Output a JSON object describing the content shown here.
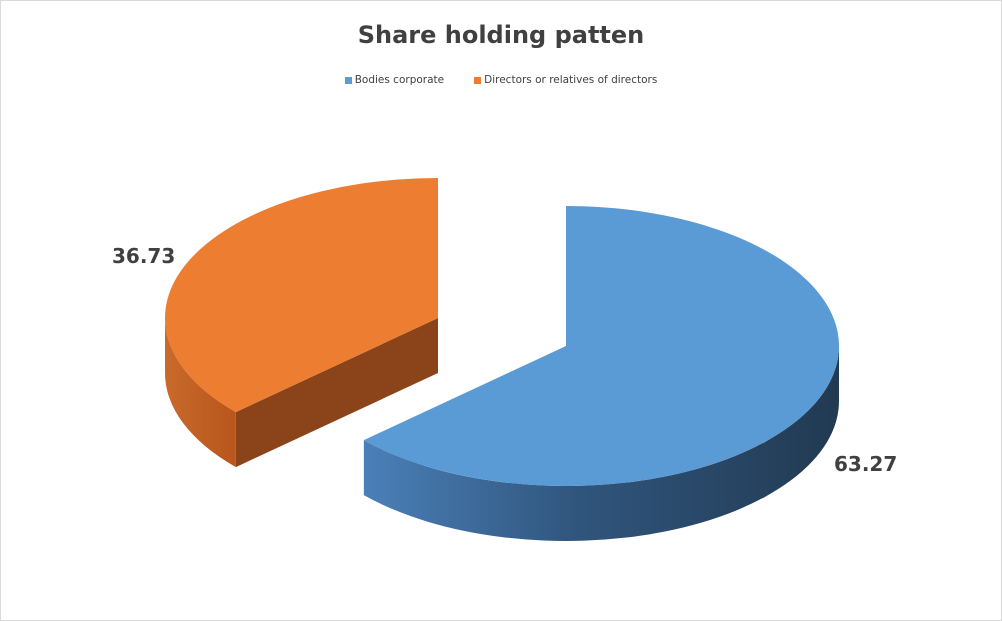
{
  "chart_data": {
    "type": "pie",
    "style": "3d-exploded",
    "title": "Share holding patten",
    "categories": [
      "Bodies corporate",
      "Directors or relatives of directors"
    ],
    "values": [
      63.27,
      36.73
    ],
    "data_labels": [
      "63.27",
      "36.73"
    ],
    "colors": [
      "#5b9bd5",
      "#ed7d31"
    ],
    "legend_position": "top"
  }
}
